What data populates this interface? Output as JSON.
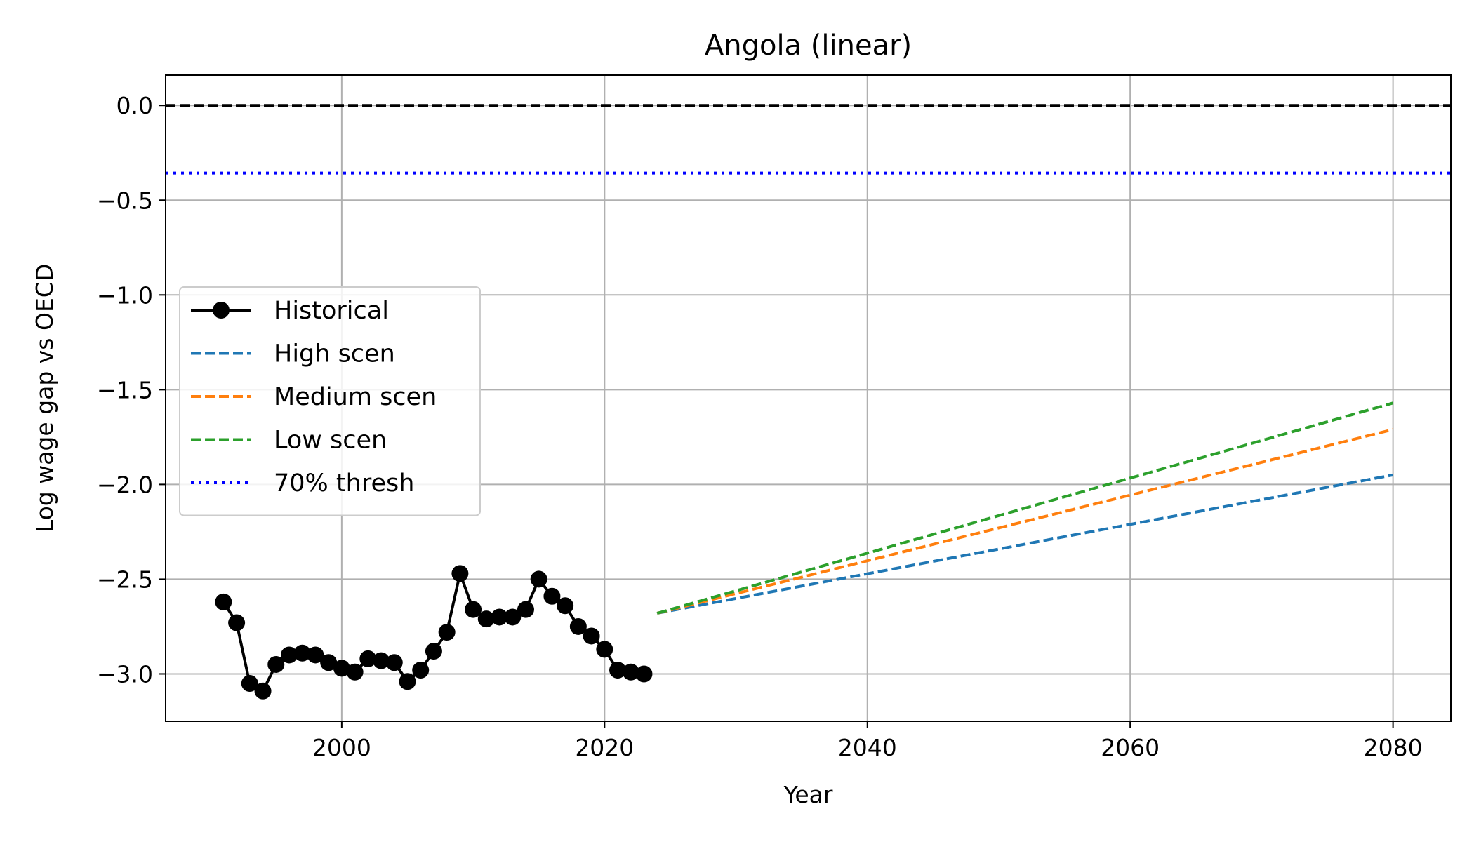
{
  "chart_data": {
    "type": "line",
    "title": "Angola (linear)",
    "xlabel": "Year",
    "ylabel": "Log wage gap vs OECD",
    "xlim": [
      1986.6,
      2084.4
    ],
    "ylim": [
      -3.25,
      0.16
    ],
    "xticks": [
      2000,
      2020,
      2040,
      2060,
      2080
    ],
    "yticks": [
      0.0,
      -0.5,
      -1.0,
      -1.5,
      -2.0,
      -2.5,
      -3.0
    ],
    "ytick_labels": [
      "0.0",
      "−0.5",
      "−1.0",
      "−1.5",
      "−2.0",
      "−2.5",
      "−3.0"
    ],
    "grid": true,
    "legend_position": "center-left",
    "series": [
      {
        "name": "Historical",
        "style": "solid-markers",
        "color": "#000000",
        "x": [
          1991,
          1992,
          1993,
          1994,
          1995,
          1996,
          1997,
          1998,
          1999,
          2000,
          2001,
          2002,
          2003,
          2004,
          2005,
          2006,
          2007,
          2008,
          2009,
          2010,
          2011,
          2012,
          2013,
          2014,
          2015,
          2016,
          2017,
          2018,
          2019,
          2020,
          2021,
          2022,
          2023
        ],
        "y": [
          -2.62,
          -2.73,
          -3.05,
          -3.09,
          -2.95,
          -2.9,
          -2.89,
          -2.9,
          -2.94,
          -2.97,
          -2.99,
          -2.92,
          -2.93,
          -2.94,
          -3.04,
          -2.98,
          -2.88,
          -2.78,
          -2.47,
          -2.66,
          -2.71,
          -2.7,
          -2.7,
          -2.66,
          -2.5,
          -2.59,
          -2.64,
          -2.75,
          -2.8,
          -2.87,
          -2.98,
          -2.99,
          -3.0
        ]
      },
      {
        "name": "High scen",
        "style": "dashed",
        "color": "#1f77b4",
        "x": [
          2024,
          2080
        ],
        "y": [
          -2.68,
          -1.95
        ]
      },
      {
        "name": "Medium scen",
        "style": "dashed",
        "color": "#ff7f0e",
        "x": [
          2024,
          2080
        ],
        "y": [
          -2.68,
          -1.71
        ]
      },
      {
        "name": "Low scen",
        "style": "dashed",
        "color": "#2ca02c",
        "x": [
          2024,
          2080
        ],
        "y": [
          -2.68,
          -1.57
        ]
      },
      {
        "name": "70% thresh",
        "style": "dotted",
        "color": "#0000ff",
        "x": [
          1986.6,
          2084.4
        ],
        "y": [
          -0.357,
          -0.357
        ]
      }
    ],
    "reference_lines": [
      {
        "y": 0.0,
        "style": "dashed",
        "color": "#000000"
      }
    ]
  }
}
